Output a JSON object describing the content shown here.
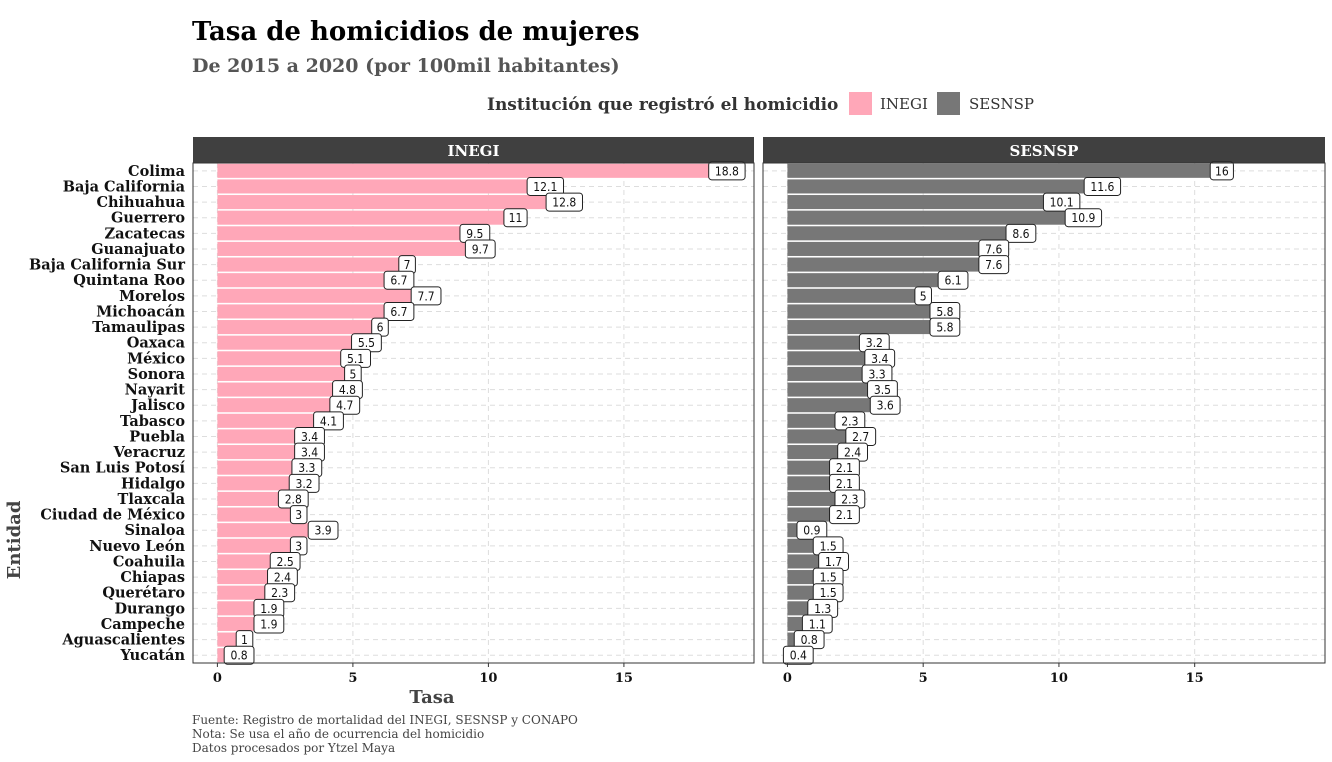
{
  "title": "Tasa de homicidios de mujeres",
  "subtitle": "De 2015 a 2020 (por 100mil habitantes)",
  "legend": {
    "title": "Institución que registró el homicidio",
    "items": [
      {
        "label": "INEGI",
        "color": "#FFA7B8"
      },
      {
        "label": "SESNSP",
        "color": "#777777"
      }
    ]
  },
  "caption": {
    "line1": "Fuente: Registro de mortalidad del INEGI, SESNSP y CONAPO",
    "line2": "Nota: Se usa el año de ocurrencia del homicidio",
    "line3": "Datos procesados por Ytzel Maya"
  },
  "chart_data": {
    "type": "bar",
    "orientation": "horizontal",
    "xlabel": "Tasa",
    "ylabel": "Entidad",
    "xlim": [
      -0.9,
      19.8
    ],
    "xticks": [
      0,
      5,
      10,
      15
    ],
    "grid": true,
    "legend_position": "top",
    "categories": [
      "Colima",
      "Baja California",
      "Chihuahua",
      "Guerrero",
      "Zacatecas",
      "Guanajuato",
      "Baja California Sur",
      "Quintana Roo",
      "Morelos",
      "Michoacán",
      "Tamaulipas",
      "Oaxaca",
      "México",
      "Sonora",
      "Nayarit",
      "Jalisco",
      "Tabasco",
      "Puebla",
      "Veracruz",
      "San Luis Potosí",
      "Hidalgo",
      "Tlaxcala",
      "Ciudad de México",
      "Sinaloa",
      "Nuevo León",
      "Coahuila",
      "Chiapas",
      "Querétaro",
      "Durango",
      "Campeche",
      "Aguascalientes",
      "Yucatán"
    ],
    "series": [
      {
        "name": "INEGI",
        "color": "#FFA7B8",
        "values": [
          18.8,
          12.1,
          12.8,
          11,
          9.5,
          9.7,
          7,
          6.7,
          7.7,
          6.7,
          6,
          5.5,
          5.1,
          5,
          4.8,
          4.7,
          4.1,
          3.4,
          3.4,
          3.3,
          3.2,
          2.8,
          3,
          3.9,
          3,
          2.5,
          2.4,
          2.3,
          1.9,
          1.9,
          1,
          0.8
        ]
      },
      {
        "name": "SESNSP",
        "color": "#777777",
        "values": [
          16,
          11.6,
          10.1,
          10.9,
          8.6,
          7.6,
          7.6,
          6.1,
          5,
          5.8,
          5.8,
          3.2,
          3.4,
          3.3,
          3.5,
          3.6,
          2.3,
          2.7,
          2.4,
          2.1,
          2.1,
          2.3,
          2.1,
          0.9,
          1.5,
          1.7,
          1.5,
          1.5,
          1.3,
          1.1,
          0.8,
          0.4
        ]
      }
    ]
  }
}
